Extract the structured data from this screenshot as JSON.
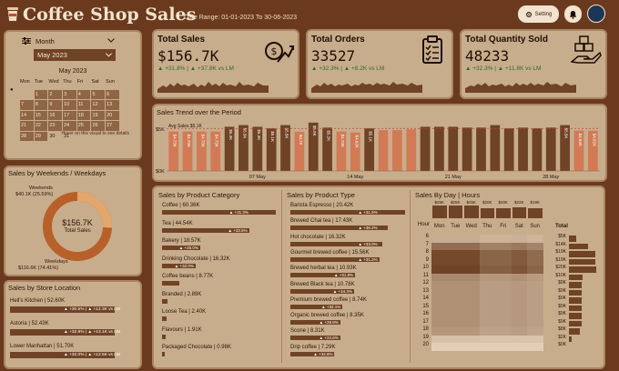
{
  "header": {
    "title": "Coffee Shop Sales",
    "date_range": "Date Range: 01-01-2023 To 30-06-2023",
    "setting_label": "Setting"
  },
  "filter": {
    "period_label": "Month",
    "selected": "May 2023",
    "calendar_title": "May 2023",
    "weekdays": [
      "Mon",
      "Tue",
      "Wed",
      "Thu",
      "Fri",
      "Sat",
      "Sun"
    ],
    "days": [
      "",
      "1",
      "2",
      "3",
      "4",
      "5",
      "6",
      "7",
      "8",
      "9",
      "10",
      "11",
      "12",
      "13",
      "14",
      "15",
      "16",
      "17",
      "18",
      "19",
      "20",
      "21",
      "22",
      "23",
      "24",
      "25",
      "26",
      "27",
      "28",
      "29",
      "30",
      "31"
    ],
    "hint": "Hover on this visual to see details"
  },
  "kpis": [
    {
      "title": "Total Sales",
      "value": "$156.7K",
      "delta": "▲ +31.8% | ▲ +37.8K vs LM",
      "icon": "sales-growth-icon"
    },
    {
      "title": "Total Orders",
      "value": "33527",
      "delta": "▲ +32.3% | ▲ +8.2K vs LM",
      "icon": "clipboard-icon"
    },
    {
      "title": "Total Quantity Sold",
      "value": "48233",
      "delta": "▲ +32.3% | ▲ +11.8K vs LM",
      "icon": "boxes-hand-icon"
    }
  ],
  "trend": {
    "title": "Sales Trend over the Period",
    "avg_label": "Avg Sales $5.1K",
    "y_top": "$5K",
    "y_bottom": "$0K",
    "x_labels": [
      "07 May",
      "14 May",
      "21 May",
      "28 May"
    ],
    "above_avg_color": "#6f4325",
    "below_avg_color": "#d27a55",
    "values": [
      4.73,
      4.73,
      4.73,
      4.73,
      5.3,
      5.5,
      5.3,
      5.1,
      5.5,
      4.7,
      5.8,
      5.2,
      4.73,
      4.62,
      5.1,
      4.9,
      4.9,
      5.0,
      5.3,
      5.3,
      5.3,
      5.2,
      5.2,
      5.5,
      5.1,
      5.2,
      5.1,
      5.2,
      5.5,
      4.84,
      4.82
    ],
    "labels_shown": [
      "$4.73K",
      "$4.73K",
      "$4.73K",
      "$4.73K",
      "$5.3K",
      "$5.5K",
      "$5.3K",
      "$5.1K",
      "$5.5K",
      "$4.7K",
      "$5.8K",
      "$5.2K",
      "$4.73K",
      "$4.62K",
      "$5.1K",
      "",
      "",
      "",
      "",
      "",
      "",
      "",
      "",
      "",
      "",
      "",
      "",
      "",
      "$5.5K",
      "$4.84K",
      "$4.82K"
    ]
  },
  "weekends": {
    "title": "Sales by Weekends / Weekdays",
    "weekends_label": "Weekends",
    "weekends_value": "$40.1K (25.59%)",
    "weekends_share": 25.59,
    "weekdays_label": "Weekdays",
    "weekdays_value": "$116.6K (74.41%)",
    "center_value": "$156.7K",
    "center_label": "Total Sales",
    "color_weekends": "#e3a66c",
    "color_weekdays": "#b8602a"
  },
  "store": {
    "title": "Sales by Store Location",
    "items": [
      {
        "name": "Hell's Kitchen | 52.60K",
        "delta": "▲ +30.5% | ▲ +12.3K vs LM"
      },
      {
        "name": "Astoria | 52.43K",
        "delta": "▲ +32.8% | ▲ +13.1K vs LM"
      },
      {
        "name": "Lower Manhattan | 51.70K",
        "delta": "▲ +32.0% | ▲ +12.5K vs LM"
      }
    ]
  },
  "category": {
    "title": "Sales by Product Category",
    "items": [
      {
        "name": "Coffee | 60.36K",
        "delta": "▲ +31.3%",
        "share": 1.0
      },
      {
        "name": "Tea | 44.54K",
        "delta": "▲ +33.5%",
        "share": 0.74
      },
      {
        "name": "Bakery | 18.57K",
        "delta": "▲ +25.0%",
        "share": 0.31
      },
      {
        "name": "Drinking Chocolate | 16.32K",
        "delta": "▲ +32.0%",
        "share": 0.27
      },
      {
        "name": "Coffee beans | 8.77K",
        "delta": "",
        "share": 0.15
      },
      {
        "name": "Branded | 2.89K",
        "delta": "",
        "share": 0.05
      },
      {
        "name": "Loose Tea | 2.40K",
        "delta": "",
        "share": 0.04
      },
      {
        "name": "Flavours | 1.91K",
        "delta": "",
        "share": 0.03
      },
      {
        "name": "Packaged Chocolate | 0.98K",
        "delta": "",
        "share": 0.02
      }
    ]
  },
  "type": {
    "title": "Sales by Product Type",
    "items": [
      {
        "name": "Barista Espresso | 20.42K",
        "delta": "▲ +31.5%",
        "share": 1.0
      },
      {
        "name": "Brewed Chai tea | 17.43K",
        "delta": "▲ +36.2%",
        "share": 0.85
      },
      {
        "name": "Hot chocolate | 16.32K",
        "delta": "▲ +33.0%",
        "share": 0.8
      },
      {
        "name": "Gourmet brewed coffee | 15.56K",
        "delta": "▲ +31.2%",
        "share": 0.76
      },
      {
        "name": "Brewed herbal tea | 10.93K",
        "delta": "▲ +31.8%",
        "share": 0.54
      },
      {
        "name": "Brewed Black tea | 10.78K",
        "delta": "▲ +34.3%",
        "share": 0.53
      },
      {
        "name": "Premium brewed coffee | 8.74K",
        "delta": "▲ +32.1%",
        "share": 0.43
      },
      {
        "name": "Organic brewed coffee | 8.35K",
        "delta": "▲ +29.9%",
        "share": 0.41
      },
      {
        "name": "Scone | 8.31K",
        "delta": "▲ +24.6%",
        "share": 0.41
      },
      {
        "name": "Drip coffee | 7.29K",
        "delta": "▲ +34.6%",
        "share": 0.36
      }
    ]
  },
  "heatmap": {
    "title": "Sales By Day | Hours",
    "hour_label": "Hour",
    "total_label": "Total",
    "days": [
      "Mon",
      "Tue",
      "Wed",
      "Thu",
      "Fri",
      "Sat",
      "Sun"
    ],
    "day_totals": [
      "$25K",
      "$25K",
      "$25K",
      "$20K",
      "$20K",
      "$22K",
      "$19K"
    ],
    "day_values": [
      25,
      25,
      25,
      20,
      20,
      22,
      19
    ],
    "hours": [
      "6",
      "7",
      "8",
      "9",
      "10",
      "11",
      "12",
      "13",
      "14",
      "15",
      "16",
      "17",
      "18",
      "19",
      "20"
    ],
    "hour_totals": [
      "$5K",
      "$14K",
      "$19K",
      "$19K",
      "$20K",
      "$10K",
      "$9K",
      "$9K",
      "$9K",
      "$9K",
      "$9K",
      "$9K",
      "$8K",
      "$2K",
      "$0K"
    ],
    "hour_values": [
      5,
      14,
      19,
      19,
      20,
      10,
      9,
      9,
      9,
      9,
      9,
      9,
      8,
      2,
      0
    ]
  }
}
